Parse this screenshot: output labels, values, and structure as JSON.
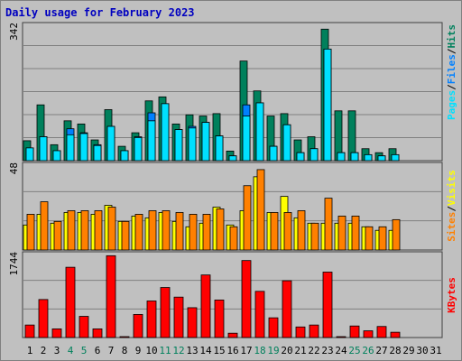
{
  "title": "Daily usage for February 2023",
  "colors": {
    "hits": "#00805c",
    "files": "#00c0ff",
    "pages": "#00e0ff",
    "sites": "#ff8000",
    "visits": "#ffff00",
    "kbytes": "#ff0000",
    "weekend": "#00805c",
    "weekday": "#000000",
    "grid": "#808080",
    "panel": "#c0c0c0"
  },
  "chart_data": [
    {
      "type": "bar",
      "panel": "hits-files-pages",
      "ymax": 342,
      "ymax_label": "342",
      "legend": [
        {
          "text": "Pages",
          "color": "#00e0ff"
        },
        {
          "text": "/",
          "color": "#000000"
        },
        {
          "text": "Files",
          "color": "#0080ff"
        },
        {
          "text": "/",
          "color": "#000000"
        },
        {
          "text": "Hits",
          "color": "#00805c"
        }
      ],
      "series": [
        {
          "name": "Hits",
          "values": [
            50,
            140,
            40,
            100,
            92,
            52,
            128,
            36,
            70,
            150,
            160,
            92,
            115,
            112,
            118,
            24,
            250,
            175,
            112,
            118,
            52,
            60,
            330,
            125,
            125,
            30,
            20,
            30
          ]
        },
        {
          "name": "Files",
          "values": [
            32,
            60,
            25,
            80,
            70,
            40,
            86,
            25,
            60,
            120,
            143,
            78,
            86,
            96,
            62,
            12,
            140,
            145,
            36,
            90,
            20,
            30,
            280,
            20,
            20,
            15,
            12,
            15
          ]
        },
        {
          "name": "Pages",
          "values": [
            32,
            60,
            25,
            65,
            68,
            38,
            86,
            25,
            58,
            100,
            143,
            78,
            82,
            96,
            62,
            12,
            112,
            145,
            36,
            90,
            20,
            30,
            280,
            20,
            20,
            15,
            12,
            15
          ]
        }
      ]
    },
    {
      "type": "bar",
      "panel": "visits-sites",
      "ymax": 48,
      "ymax_label": "48",
      "legend": [
        {
          "text": "Sites",
          "color": "#ff8000"
        },
        {
          "text": "/",
          "color": "#000000"
        },
        {
          "text": "Visits",
          "color": "#ffff00"
        }
      ],
      "series": [
        {
          "name": "Visits",
          "values": [
            14,
            20,
            15,
            21,
            21,
            20,
            25,
            16,
            19,
            18,
            21,
            16,
            13,
            15,
            24,
            14,
            22,
            41,
            21,
            30,
            18,
            15,
            15,
            15,
            15,
            13,
            11,
            11
          ]
        },
        {
          "name": "Sites",
          "values": [
            20,
            27,
            16,
            22,
            22,
            22,
            24,
            16,
            20,
            22,
            22,
            21,
            20,
            20,
            23,
            13,
            36,
            45,
            21,
            21,
            22,
            15,
            29,
            19,
            19,
            13,
            13,
            17
          ]
        }
      ]
    },
    {
      "type": "bar",
      "panel": "kbytes",
      "ymax": 1744,
      "ymax_label": "1744",
      "legend": [
        {
          "text": "KBytes",
          "color": "#ff0000"
        }
      ],
      "series": [
        {
          "name": "KBytes",
          "values": [
            260,
            790,
            180,
            1460,
            440,
            180,
            1700,
            10,
            480,
            760,
            1040,
            840,
            620,
            1300,
            780,
            90,
            1600,
            960,
            410,
            1180,
            220,
            260,
            1360,
            10,
            240,
            140,
            230,
            110
          ]
        }
      ]
    }
  ],
  "x_axis": {
    "labels": [
      "1",
      "2",
      "3",
      "4",
      "5",
      "6",
      "7",
      "8",
      "9",
      "10",
      "11",
      "12",
      "13",
      "14",
      "15",
      "16",
      "17",
      "18",
      "19",
      "20",
      "21",
      "22",
      "23",
      "24",
      "25",
      "26",
      "27",
      "28",
      "29",
      "30",
      "31"
    ],
    "weekend": [
      4,
      5,
      11,
      12,
      18,
      19,
      25,
      26
    ]
  }
}
